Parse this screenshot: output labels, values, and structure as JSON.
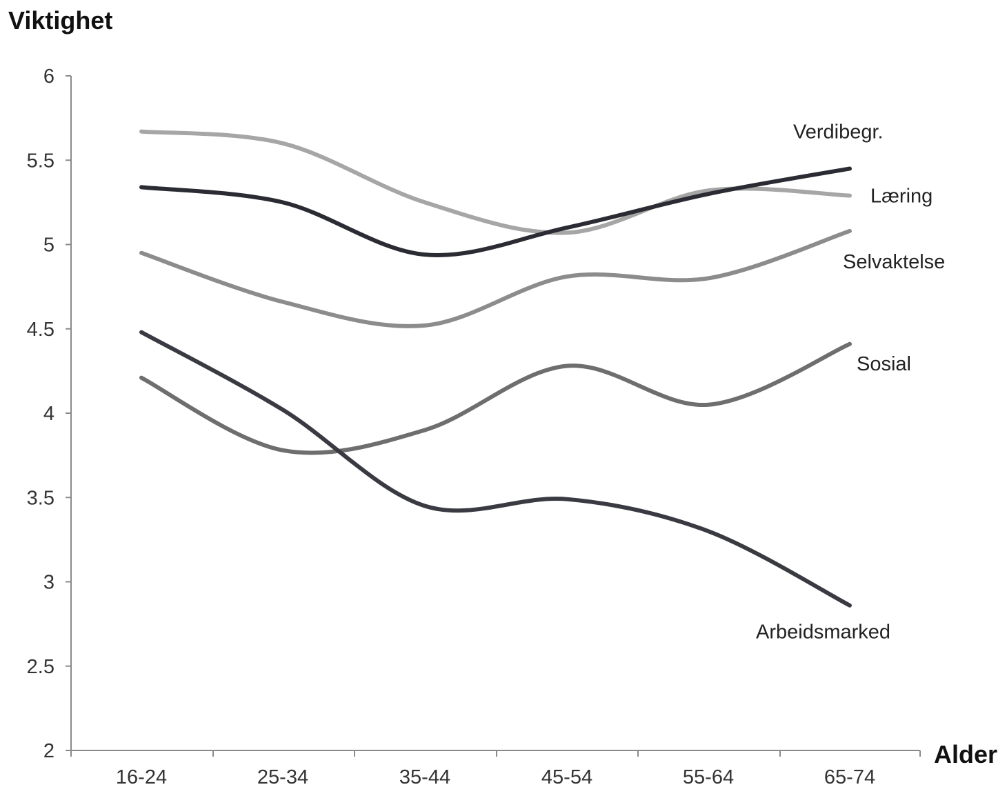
{
  "chart_data": {
    "type": "line",
    "ylabel": "Viktighet",
    "xlabel": "Alder",
    "categories": [
      "16-24",
      "25-34",
      "35-44",
      "45-54",
      "55-64",
      "65-74"
    ],
    "ylim": [
      2,
      6
    ],
    "yticks": [
      "2",
      "2.5",
      "3",
      "3.5",
      "4",
      "4.5",
      "5",
      "5.5",
      "6"
    ],
    "grid": false,
    "legend": "direct labels at right end of lines",
    "series": [
      {
        "name": "Læring",
        "color": "#a6a6a6",
        "values": [
          5.67,
          5.6,
          5.25,
          5.07,
          5.32,
          5.29
        ]
      },
      {
        "name": "Verdibegr.",
        "color": "#2b2b33",
        "values": [
          5.34,
          5.25,
          4.94,
          5.1,
          5.3,
          5.45
        ]
      },
      {
        "name": "Selvaktelse",
        "color": "#8c8c8c",
        "values": [
          4.95,
          4.66,
          4.52,
          4.81,
          4.8,
          5.08
        ]
      },
      {
        "name": "Sosial",
        "color": "#6e6e6e",
        "values": [
          4.21,
          3.78,
          3.9,
          4.28,
          4.05,
          4.41
        ]
      },
      {
        "name": "Arbeidsmarked",
        "color": "#3a3a42",
        "values": [
          4.48,
          4.02,
          3.45,
          3.49,
          3.3,
          2.86
        ]
      }
    ]
  }
}
